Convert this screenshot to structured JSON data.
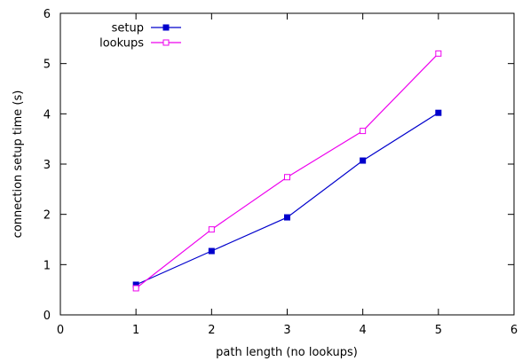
{
  "chart_data": {
    "type": "line",
    "title": "",
    "xlabel": "path length (no lookups)",
    "ylabel": "connection setup time (s)",
    "xlim": [
      0,
      6
    ],
    "ylim": [
      0,
      6
    ],
    "x_ticks": [
      "0",
      "1",
      "2",
      "3",
      "4",
      "5",
      "6"
    ],
    "y_ticks": [
      "0",
      "1",
      "2",
      "3",
      "4",
      "5",
      "6"
    ],
    "grid": false,
    "legend_position": "top-left",
    "series": [
      {
        "name": "setup",
        "color": "#0000cc",
        "marker": "filled-square",
        "x": [
          1,
          2,
          3,
          4,
          5
        ],
        "y": [
          0.6,
          1.27,
          1.94,
          3.07,
          4.02
        ]
      },
      {
        "name": "lookups",
        "color": "#ee00ee",
        "marker": "open-square",
        "x": [
          1,
          2,
          3,
          4,
          5
        ],
        "y": [
          0.53,
          1.7,
          2.74,
          3.66,
          5.2
        ]
      }
    ]
  }
}
